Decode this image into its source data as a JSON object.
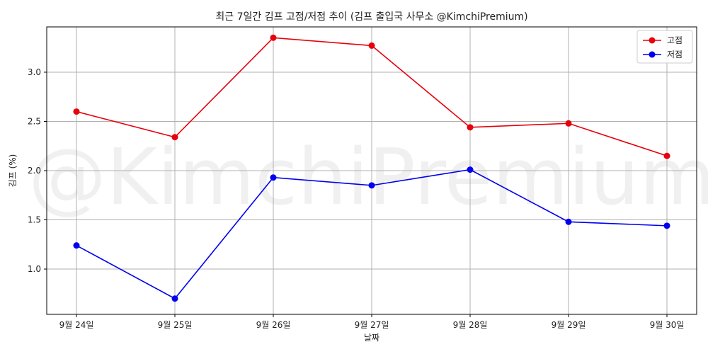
{
  "chart_data": {
    "type": "line",
    "title": "최근 7일간 김프 고점/저점 추이 (김프 출입국 사무소 @KimchiPremium)",
    "xlabel": "날짜",
    "ylabel": "김프 (%)",
    "categories": [
      "9월 24일",
      "9월 25일",
      "9월 26일",
      "9월 27일",
      "9월 28일",
      "9월 29일",
      "9월 30일"
    ],
    "series": [
      {
        "name": "고점",
        "color": "#e8000b",
        "values": [
          2.6,
          2.34,
          3.35,
          3.27,
          2.44,
          2.48,
          2.15
        ]
      },
      {
        "name": "저점",
        "color": "#0000ee",
        "values": [
          1.24,
          0.7,
          1.93,
          1.85,
          2.01,
          1.48,
          1.44
        ]
      }
    ],
    "yticks": [
      1.0,
      1.5,
      2.0,
      2.5,
      3.0
    ],
    "ylim": [
      0.54,
      3.46
    ],
    "grid": true,
    "legend": "top-right",
    "watermark": "@KimchiPremium"
  }
}
